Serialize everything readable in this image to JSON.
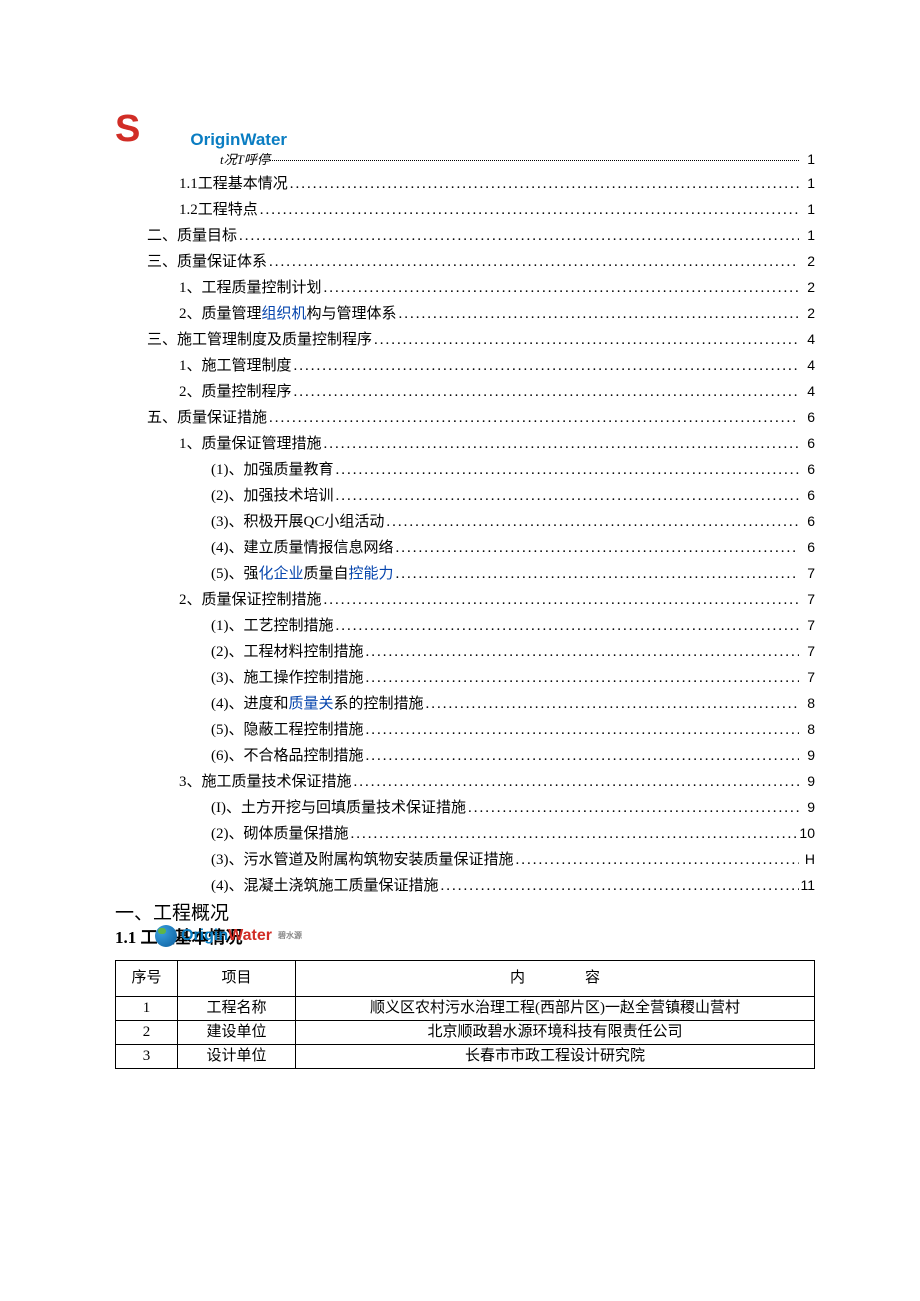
{
  "brand": {
    "logo_letter": "S",
    "name": "OriginWater",
    "subline": "t况T呼停"
  },
  "toc": [
    {
      "level": "first",
      "text": "",
      "page": "1"
    },
    {
      "level": 2,
      "text": "1.1工程基本情况",
      "page": "1",
      "text_parts": [
        [
          "",
          "1.1工程基本情况"
        ]
      ]
    },
    {
      "level": 2,
      "text": "1.2工程特点",
      "page": "1",
      "text_parts": [
        [
          "",
          "1.2工程特点"
        ]
      ]
    },
    {
      "level": 1,
      "text": "二、质量目标",
      "page": "1",
      "text_parts": [
        [
          "",
          "二、质量目标"
        ]
      ]
    },
    {
      "level": 1,
      "text": "三、质量保证体系",
      "page": "2",
      "text_parts": [
        [
          "",
          "三、质量保证体系"
        ]
      ]
    },
    {
      "level": 2,
      "text": "1、工程质量控制计划",
      "page": "2",
      "text_parts": [
        [
          "",
          "1、工程质量控制计划"
        ]
      ]
    },
    {
      "level": 2,
      "text": "2、质量管理组织机构与管理体系",
      "page": "2",
      "text_parts": [
        [
          "",
          "2、质量管理"
        ],
        [
          "blue",
          "组织机"
        ],
        [
          "",
          "构与管理体系"
        ]
      ]
    },
    {
      "level": 1,
      "text": "三、施工管理制度及质量控制程序",
      "page": "4",
      "text_parts": [
        [
          "",
          "三、施工管理制度及质量控制程序"
        ]
      ]
    },
    {
      "level": 2,
      "text": "1、施工管理制度",
      "page": "4",
      "text_parts": [
        [
          "",
          "1、施工管理制度"
        ]
      ]
    },
    {
      "level": 2,
      "text": "2、质量控制程序",
      "page": "4",
      "text_parts": [
        [
          "",
          "2、质量控制程序"
        ]
      ]
    },
    {
      "level": 1,
      "text": "五、质量保证措施",
      "page": "6",
      "text_parts": [
        [
          "",
          "五、质量保证措施"
        ]
      ]
    },
    {
      "level": 2,
      "text": "1、质量保证管理措施",
      "page": "6",
      "text_parts": [
        [
          "",
          "1、质量保证管理措施"
        ]
      ]
    },
    {
      "level": 3,
      "text": "(1)、加强质量教育",
      "page": "6",
      "text_parts": [
        [
          "",
          "(1)、加强质量教育"
        ]
      ]
    },
    {
      "level": 3,
      "text": "(2)、加强技术培训",
      "page": "6",
      "text_parts": [
        [
          "",
          "(2)、加强技术培训"
        ]
      ]
    },
    {
      "level": 3,
      "text": "(3)、积极开展QC小组活动",
      "page": "6",
      "text_parts": [
        [
          "",
          "(3)、积极开展QC小组活动"
        ]
      ]
    },
    {
      "level": 3,
      "text": "(4)、建立质量情报信息网络",
      "page": "6",
      "text_parts": [
        [
          "",
          "(4)、建立质量情报信息网络"
        ]
      ]
    },
    {
      "level": 3,
      "text": "(5)、强化企业质量自控能力",
      "page": "7",
      "text_parts": [
        [
          "",
          "(5)、强"
        ],
        [
          "blue",
          "化企业"
        ],
        [
          "",
          "质量自"
        ],
        [
          "blue",
          "控能力"
        ]
      ]
    },
    {
      "level": 2,
      "text": "2、质量保证控制措施",
      "page": "7",
      "text_parts": [
        [
          "",
          "2、质量保证控制措施"
        ]
      ]
    },
    {
      "level": 3,
      "text": "(1)、工艺控制措施",
      "page": "7",
      "text_parts": [
        [
          "",
          "(1)、工艺控制措施"
        ]
      ]
    },
    {
      "level": 3,
      "text": "(2)、工程材料控制措施",
      "page": "7",
      "text_parts": [
        [
          "",
          "(2)、工程材料控制措施"
        ]
      ]
    },
    {
      "level": 3,
      "text": "(3)、施工操作控制措施",
      "page": "7",
      "text_parts": [
        [
          "",
          "(3)、施工操作控制措施"
        ]
      ]
    },
    {
      "level": 3,
      "text": "(4)、进度和质量关系的控制措施",
      "page": "8",
      "text_parts": [
        [
          "",
          "(4)、进度和"
        ],
        [
          "blue",
          "质量关"
        ],
        [
          "",
          "系的控制措施"
        ]
      ]
    },
    {
      "level": 3,
      "text": "(5)、隐蔽工程控制措施",
      "page": "8",
      "text_parts": [
        [
          "",
          "(5)、隐蔽工程控制措施"
        ]
      ]
    },
    {
      "level": 3,
      "text": "(6)、不合格品控制措施",
      "page": "9",
      "text_parts": [
        [
          "",
          "(6)、不合格品控制措施"
        ]
      ]
    },
    {
      "level": 2,
      "text": "3、施工质量技术保证措施",
      "page": "9",
      "text_parts": [
        [
          "",
          "3、施工质量技术保证措施"
        ]
      ]
    },
    {
      "level": 3,
      "text": "(I)、土方开挖与回填质量技术保证措施",
      "page": "9",
      "text_parts": [
        [
          "",
          "(I)、土方开挖与回填质量技术保证措施"
        ]
      ]
    },
    {
      "level": 3,
      "text": "(2)、砌体质量保措施",
      "page": "10",
      "text_parts": [
        [
          "",
          "(2)、砌体质量保措施"
        ]
      ]
    },
    {
      "level": 3,
      "text": "(3)、污水管道及附属构筑物安装质量保证措施",
      "page": "H",
      "text_parts": [
        [
          "",
          "(3)、污水管道及附属构筑物安装质量保证措施"
        ]
      ]
    },
    {
      "level": 3,
      "text": "(4)、混凝土浇筑施工质量保证措施",
      "page": "11",
      "text_parts": [
        [
          "",
          "(4)、混凝土浇筑施工质量保证措施"
        ]
      ]
    }
  ],
  "section": {
    "h1": "一、工程概况",
    "h2": "1.1 工程基本情况"
  },
  "inline_logo": {
    "text_blue": "Origin",
    "text_red": "Water",
    "sub": "碧水源"
  },
  "table": {
    "headers": {
      "c1": "序号",
      "c2": "项目",
      "c3": "内　　　　容"
    },
    "rows": [
      {
        "n": "1",
        "k": "工程名称",
        "v": "顺义区农村污水治理工程(西部片区)一赵全营镇稷山营村"
      },
      {
        "n": "2",
        "k": "建设单位",
        "v": "北京顺政碧水源环境科技有限责任公司"
      },
      {
        "n": "3",
        "k": "设计单位",
        "v": "长春市市政工程设计研究院"
      }
    ]
  }
}
